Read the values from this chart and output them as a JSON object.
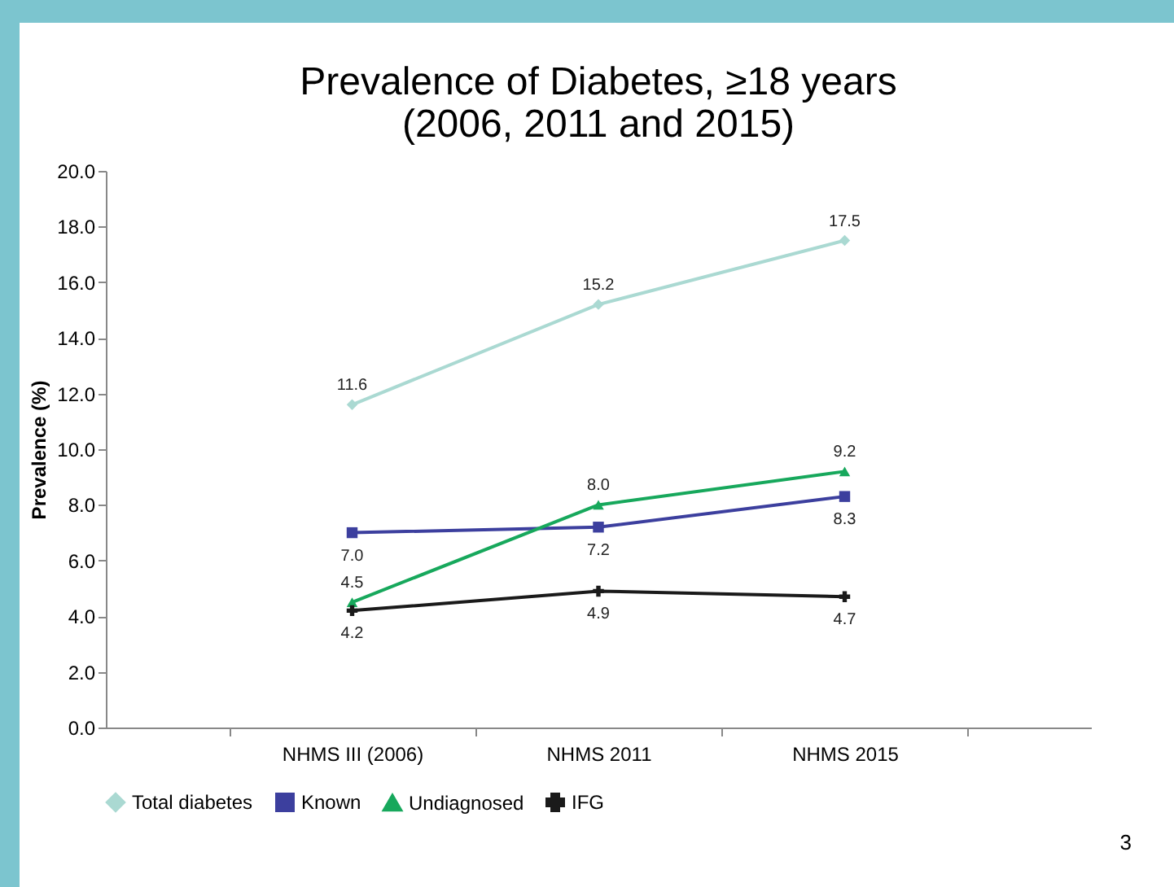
{
  "chart_data": {
    "type": "line",
    "title": "Prevalence of Diabetes, ≥18 years\n(2006, 2011 and 2015)",
    "ylabel": "Prevalence (%)",
    "categories": [
      "NHMS III (2006)",
      "NHMS 2011",
      "NHMS 2015"
    ],
    "series": [
      {
        "name": "Total diabetes",
        "color": "#aad9d2",
        "marker": "diamond",
        "values": [
          11.6,
          15.2,
          17.5
        ],
        "value_labels": [
          "11.6",
          "15.2",
          "17.5"
        ]
      },
      {
        "name": "Known",
        "color": "#3c3f9e",
        "marker": "square",
        "values": [
          7.0,
          7.2,
          8.3
        ],
        "value_labels": [
          "7.0",
          "7.2",
          "8.3"
        ]
      },
      {
        "name": "Undiagnosed",
        "color": "#17a85c",
        "marker": "triangle",
        "values": [
          4.5,
          8.0,
          9.2
        ],
        "value_labels": [
          "4.5",
          "8.0",
          "9.2"
        ]
      },
      {
        "name": "IFG",
        "color": "#1a1a1a",
        "marker": "cross",
        "values": [
          4.2,
          4.9,
          4.7
        ],
        "value_labels": [
          "4.2",
          "4.9",
          "4.7"
        ]
      }
    ],
    "ylim": [
      0,
      20
    ],
    "yticks": [
      {
        "value": 0,
        "label": "0.0"
      },
      {
        "value": 2,
        "label": "2.0"
      },
      {
        "value": 4,
        "label": "4.0"
      },
      {
        "value": 6,
        "label": "6.0"
      },
      {
        "value": 8,
        "label": "8.0"
      },
      {
        "value": 10,
        "label": "10.0"
      },
      {
        "value": 12,
        "label": "12.0"
      },
      {
        "value": 14,
        "label": "14.0"
      },
      {
        "value": 16,
        "label": "16.0"
      },
      {
        "value": 18,
        "label": "18.0"
      },
      {
        "value": 20,
        "label": "20.0"
      }
    ],
    "legend": "bottom",
    "grid": false,
    "line_style": "solid",
    "annotations": [
      "3"
    ]
  }
}
